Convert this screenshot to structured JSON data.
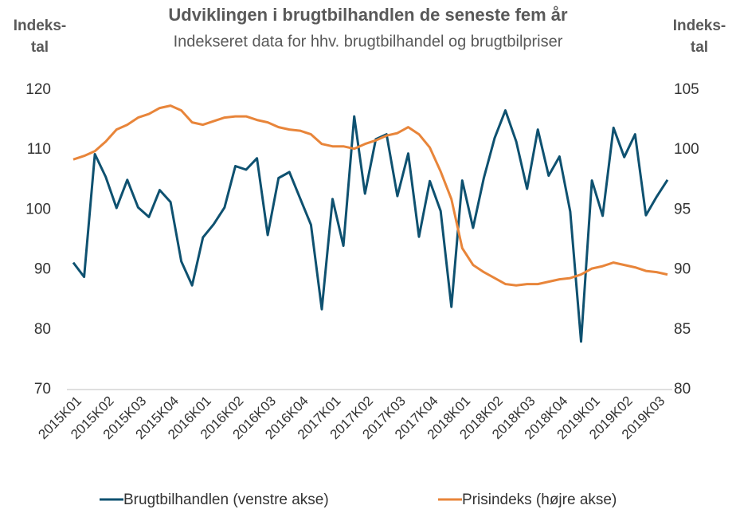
{
  "chart_data": {
    "type": "line",
    "title": "Udviklingen i brugtbilhandlen de seneste fem år",
    "subtitle": "Indekseret data for hhv. brugtbilhandel og brugtbilpriser",
    "ylabel": [
      "Indeks-",
      "tal"
    ],
    "y2label": [
      "Indeks-",
      "tal"
    ],
    "categories": [
      "2015K01",
      null,
      null,
      "2015K02",
      null,
      null,
      "2015K03",
      null,
      null,
      "2015K04",
      null,
      null,
      "2016K01",
      null,
      null,
      "2016K02",
      null,
      null,
      "2016K03",
      null,
      null,
      "2016K04",
      null,
      null,
      "2017K01",
      null,
      null,
      "2017K02",
      null,
      null,
      "2017K03",
      null,
      null,
      "2017K04",
      null,
      null,
      "2018K01",
      null,
      null,
      "2018K02",
      null,
      null,
      "2018K03",
      null,
      null,
      "2018K04",
      null,
      null,
      "2019K01",
      null,
      null,
      "2019K02",
      null,
      null,
      "2019K03",
      null
    ],
    "series": [
      {
        "name": "Brugtbilhandlen (venstre akse)",
        "color": "#0e5170",
        "values": [
          91.2,
          88.8,
          109.3,
          105.5,
          100.3,
          105,
          100.4,
          98.8,
          103.3,
          101.3,
          91.4,
          87.4,
          95.4,
          97.6,
          100.4,
          107.3,
          106.7,
          108.6,
          95.8,
          105.3,
          106.3,
          101.9,
          97.5,
          83.4,
          101.8,
          94,
          115.6,
          102.7,
          111.8,
          112.6,
          102.3,
          109.4,
          95.5,
          104.8,
          99.8,
          83.8,
          104.9,
          97,
          105.3,
          112,
          116.6,
          111.4,
          103.5,
          113.4,
          105.7,
          108.9,
          99.7,
          78,
          104.9,
          99,
          113.7,
          108.8,
          112.6,
          99.1,
          102.2,
          105
        ]
      },
      {
        "name": "Prisindeks (højre akse)",
        "color": "#e8853a",
        "axis": "y2",
        "values": [
          99.2,
          99.5,
          99.9,
          100.7,
          101.7,
          102.1,
          102.7,
          103,
          103.5,
          103.7,
          103.3,
          102.3,
          102.1,
          102.4,
          102.7,
          102.8,
          102.8,
          102.5,
          102.3,
          101.9,
          101.7,
          101.6,
          101.3,
          100.5,
          100.3,
          100.3,
          100.1,
          100.5,
          100.8,
          101.2,
          101.4,
          101.9,
          101.3,
          100.2,
          98.2,
          95.9,
          91.8,
          90.4,
          89.8,
          89.3,
          88.8,
          88.7,
          88.8,
          88.8,
          89,
          89.2,
          89.3,
          89.6,
          90.1,
          90.3,
          90.6,
          90.4,
          90.2,
          89.9,
          89.8,
          89.6
        ]
      }
    ],
    "ylim": [
      70,
      120
    ],
    "yticks": [
      70,
      80,
      90,
      100,
      110,
      120
    ],
    "y2lim": [
      80,
      105
    ],
    "y2ticks": [
      80,
      85,
      90,
      95,
      100,
      105
    ],
    "grid": false,
    "legend": "bottom"
  }
}
